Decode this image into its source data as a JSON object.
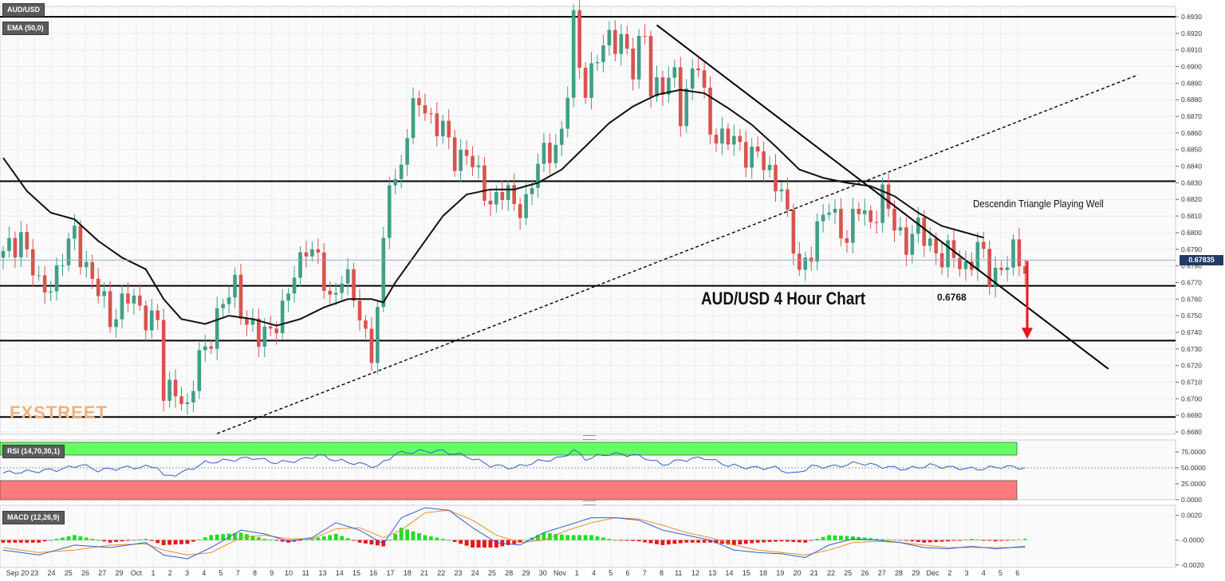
{
  "symbol": "AUD/USD",
  "indicators": {
    "ema": "EMA (50,0)",
    "rsi": "RSI (14,70,30,1)",
    "macd": "MACD (12,26,9)"
  },
  "watermark": {
    "part1": "FX",
    "part2": "STREET"
  },
  "annotations": {
    "chart_title": "AUD/USD 4 Hour Chart",
    "pattern": "Descendin Triangle  Playing Well",
    "level": "0.6768"
  },
  "current_price": "0.67835",
  "colors": {
    "bull": "#3f9f86",
    "bear": "#d9534f",
    "ema": "#111111",
    "arrow": "#e8161b",
    "rsi_line": "#2f5fd0",
    "macd_line": "#2f5fd0",
    "signal_line": "#f08c2b",
    "hist_pos": "#22dd22",
    "hist_neg": "#ee1111",
    "overbought": "#66ff66",
    "oversold": "#ff7b7b"
  },
  "chart_data": [
    {
      "type": "candlestick",
      "title": "AUD/USD 4 Hour Chart",
      "timeframe": "4H",
      "x_ticks": [
        "Sep 20",
        "23",
        "24",
        "25",
        "26",
        "27",
        "29",
        "Oct",
        "1",
        "2",
        "3",
        "4",
        "5",
        "7",
        "8",
        "9",
        "10",
        "11",
        "13",
        "14",
        "15",
        "16",
        "17",
        "18",
        "21",
        "22",
        "23",
        "24",
        "25",
        "28",
        "29",
        "30",
        "Nov",
        "1",
        "4",
        "5",
        "6",
        "7",
        "8",
        "11",
        "12",
        "13",
        "14",
        "15",
        "18",
        "19",
        "20",
        "21",
        "22",
        "25",
        "26",
        "27",
        "28",
        "29",
        "Dec",
        "2",
        "3",
        "4",
        "5",
        "6"
      ],
      "y_ticks": [
        "0.6930",
        "0.6920",
        "0.6910",
        "0.6900",
        "0.6890",
        "0.6880",
        "0.6870",
        "0.6860",
        "0.6850",
        "0.6840",
        "0.6830",
        "0.6820",
        "0.6810",
        "0.6800",
        "0.6790",
        "0.6780",
        "0.6770",
        "0.6760",
        "0.6750",
        "0.6740",
        "0.6730",
        "0.6720",
        "0.6710",
        "0.6700",
        "0.6690",
        "0.6680"
      ],
      "ylim": [
        0.6677,
        0.6934
      ],
      "close_path": [
        [
          0,
          0.6785
        ],
        [
          3,
          0.68
        ],
        [
          6,
          0.6765
        ],
        [
          9,
          0.6775
        ],
        [
          12,
          0.68
        ],
        [
          15,
          0.677
        ],
        [
          18,
          0.675
        ],
        [
          21,
          0.676
        ],
        [
          24,
          0.6752
        ],
        [
          26,
          0.6745
        ],
        [
          27,
          0.67
        ],
        [
          29,
          0.671
        ],
        [
          31,
          0.669
        ],
        [
          33,
          0.6725
        ],
        [
          35,
          0.674
        ],
        [
          37,
          0.6755
        ],
        [
          39,
          0.677
        ],
        [
          41,
          0.6745
        ],
        [
          43,
          0.6735
        ],
        [
          45,
          0.6745
        ],
        [
          47,
          0.675
        ],
        [
          49,
          0.6775
        ],
        [
          51,
          0.6795
        ],
        [
          53,
          0.678
        ],
        [
          55,
          0.676
        ],
        [
          57,
          0.6775
        ],
        [
          59,
          0.676
        ],
        [
          61,
          0.674
        ],
        [
          62,
          0.673
        ],
        [
          63,
          0.675
        ],
        [
          64,
          0.679
        ],
        [
          65,
          0.6835
        ],
        [
          66,
          0.683
        ],
        [
          68,
          0.686
        ],
        [
          70,
          0.688
        ],
        [
          72,
          0.687
        ],
        [
          74,
          0.686
        ],
        [
          76,
          0.6845
        ],
        [
          78,
          0.685
        ],
        [
          80,
          0.683
        ],
        [
          82,
          0.682
        ],
        [
          84,
          0.6825
        ],
        [
          86,
          0.6815
        ],
        [
          88,
          0.682
        ],
        [
          90,
          0.684
        ],
        [
          92,
          0.685
        ],
        [
          94,
          0.686
        ],
        [
          95,
          0.6885
        ],
        [
          96,
          0.6925
        ],
        [
          97,
          0.69
        ],
        [
          98,
          0.689
        ],
        [
          100,
          0.6905
        ],
        [
          102,
          0.6915
        ],
        [
          104,
          0.692
        ],
        [
          106,
          0.6895
        ],
        [
          107,
          0.691
        ],
        [
          108,
          0.6922
        ],
        [
          109,
          0.689
        ],
        [
          111,
          0.6885
        ],
        [
          113,
          0.6895
        ],
        [
          114,
          0.6875
        ],
        [
          116,
          0.6895
        ],
        [
          117,
          0.69
        ],
        [
          118,
          0.688
        ],
        [
          119,
          0.6865
        ],
        [
          121,
          0.6855
        ],
        [
          123,
          0.6855
        ],
        [
          125,
          0.685
        ],
        [
          127,
          0.6845
        ],
        [
          129,
          0.6835
        ],
        [
          131,
          0.683
        ],
        [
          132,
          0.6805
        ],
        [
          133,
          0.679
        ],
        [
          134,
          0.6775
        ],
        [
          135,
          0.6785
        ],
        [
          137,
          0.68
        ],
        [
          139,
          0.6815
        ],
        [
          141,
          0.6805
        ],
        [
          142,
          0.6795
        ],
        [
          144,
          0.6815
        ],
        [
          146,
          0.6808
        ],
        [
          148,
          0.682
        ],
        [
          150,
          0.6805
        ],
        [
          152,
          0.6795
        ],
        [
          154,
          0.68
        ],
        [
          156,
          0.6795
        ],
        [
          158,
          0.6785
        ],
        [
          160,
          0.6785
        ],
        [
          162,
          0.678
        ],
        [
          163,
          0.6785
        ],
        [
          164,
          0.679
        ],
        [
          166,
          0.6775
        ],
        [
          168,
          0.678
        ],
        [
          170,
          0.6785
        ],
        [
          172,
          0.678
        ]
      ],
      "ema_50": [
        [
          0,
          0.6845
        ],
        [
          4,
          0.6825
        ],
        [
          8,
          0.6812
        ],
        [
          12,
          0.6808
        ],
        [
          16,
          0.6795
        ],
        [
          20,
          0.6785
        ],
        [
          24,
          0.6778
        ],
        [
          27,
          0.676
        ],
        [
          30,
          0.6748
        ],
        [
          34,
          0.6745
        ],
        [
          38,
          0.675
        ],
        [
          42,
          0.6748
        ],
        [
          46,
          0.6744
        ],
        [
          50,
          0.6748
        ],
        [
          54,
          0.6755
        ],
        [
          58,
          0.676
        ],
        [
          62,
          0.676
        ],
        [
          64,
          0.6758
        ],
        [
          66,
          0.677
        ],
        [
          70,
          0.679
        ],
        [
          74,
          0.681
        ],
        [
          78,
          0.6823
        ],
        [
          82,
          0.6826
        ],
        [
          86,
          0.6826
        ],
        [
          90,
          0.683
        ],
        [
          94,
          0.6838
        ],
        [
          98,
          0.6852
        ],
        [
          102,
          0.6866
        ],
        [
          106,
          0.6876
        ],
        [
          110,
          0.6883
        ],
        [
          114,
          0.6886
        ],
        [
          118,
          0.6884
        ],
        [
          122,
          0.6875
        ],
        [
          126,
          0.6865
        ],
        [
          130,
          0.6852
        ],
        [
          134,
          0.6838
        ],
        [
          138,
          0.6833
        ],
        [
          142,
          0.683
        ],
        [
          146,
          0.6828
        ],
        [
          150,
          0.6822
        ],
        [
          154,
          0.6812
        ],
        [
          158,
          0.6804
        ],
        [
          162,
          0.68
        ],
        [
          165,
          0.6797
        ]
      ],
      "horizontal_levels": [
        0.693,
        0.6831,
        0.6768,
        0.6735,
        0.6689
      ],
      "trendlines": [
        {
          "name": "descending resistance",
          "points": [
            [
              110,
              0.6925
            ],
            [
              186,
              0.6718
            ]
          ]
        },
        {
          "name": "rising support (dashed)",
          "points": [
            [
              36,
              0.6679
            ],
            [
              191,
              0.6895
            ]
          ]
        }
      ],
      "projection_arrow": {
        "from": 0.6783,
        "to": 0.6736
      }
    },
    {
      "type": "line",
      "title": "RSI (14,70,30,1)",
      "y_ticks": [
        "75.0000",
        "50.0000",
        "25.0000",
        "0.0000"
      ],
      "ylim": [
        0,
        90
      ],
      "overbought": 70,
      "oversold": 30,
      "values": [
        [
          0,
          42
        ],
        [
          6,
          45
        ],
        [
          10,
          48
        ],
        [
          13,
          55
        ],
        [
          16,
          46
        ],
        [
          20,
          50
        ],
        [
          26,
          52
        ],
        [
          27,
          36
        ],
        [
          30,
          42
        ],
        [
          34,
          58
        ],
        [
          38,
          62
        ],
        [
          42,
          66
        ],
        [
          46,
          58
        ],
        [
          50,
          62
        ],
        [
          53,
          70
        ],
        [
          56,
          62
        ],
        [
          60,
          56
        ],
        [
          63,
          52
        ],
        [
          66,
          72
        ],
        [
          70,
          76
        ],
        [
          74,
          76
        ],
        [
          78,
          68
        ],
        [
          82,
          54
        ],
        [
          86,
          50
        ],
        [
          90,
          60
        ],
        [
          94,
          66
        ],
        [
          96,
          78
        ],
        [
          98,
          64
        ],
        [
          102,
          72
        ],
        [
          106,
          70
        ],
        [
          108,
          66
        ],
        [
          111,
          55
        ],
        [
          114,
          62
        ],
        [
          118,
          66
        ],
        [
          122,
          54
        ],
        [
          126,
          50
        ],
        [
          130,
          50
        ],
        [
          133,
          40
        ],
        [
          136,
          52
        ],
        [
          140,
          52
        ],
        [
          144,
          58
        ],
        [
          148,
          52
        ],
        [
          152,
          48
        ],
        [
          156,
          54
        ],
        [
          160,
          50
        ],
        [
          164,
          48
        ],
        [
          168,
          52
        ],
        [
          172,
          50
        ]
      ]
    },
    {
      "type": "bar+line",
      "title": "MACD (12,26,9)",
      "y_ticks": [
        "0.0020",
        "-0.0000",
        "-0.0020"
      ],
      "ylim": [
        -0.0022,
        0.0028
      ],
      "macd": [
        [
          0,
          -0.0008
        ],
        [
          6,
          -0.0012
        ],
        [
          12,
          -0.0004
        ],
        [
          18,
          -0.0006
        ],
        [
          24,
          -0.0002
        ],
        [
          27,
          -0.0012
        ],
        [
          31,
          -0.0015
        ],
        [
          35,
          -0.0006
        ],
        [
          40,
          0.0008
        ],
        [
          44,
          0.0005
        ],
        [
          48,
          -0.0001
        ],
        [
          52,
          0.0002
        ],
        [
          56,
          0.0014
        ],
        [
          60,
          0.0008
        ],
        [
          64,
          -0.0003
        ],
        [
          67,
          0.0018
        ],
        [
          71,
          0.0026
        ],
        [
          75,
          0.0024
        ],
        [
          79,
          0.001
        ],
        [
          83,
          -0.0002
        ],
        [
          87,
          -0.0004
        ],
        [
          91,
          0.0006
        ],
        [
          95,
          0.0012
        ],
        [
          99,
          0.0018
        ],
        [
          103,
          0.0018
        ],
        [
          107,
          0.0016
        ],
        [
          111,
          0.0008
        ],
        [
          115,
          0.0004
        ],
        [
          119,
          0.0
        ],
        [
          123,
          -0.0008
        ],
        [
          127,
          -0.001
        ],
        [
          131,
          -0.0011
        ],
        [
          135,
          -0.0014
        ],
        [
          139,
          -0.0004
        ],
        [
          143,
          0.0001
        ],
        [
          147,
          0.0
        ],
        [
          151,
          -0.0002
        ],
        [
          155,
          -0.0006
        ],
        [
          159,
          -0.0007
        ],
        [
          163,
          -0.0005
        ],
        [
          167,
          -0.0007
        ],
        [
          172,
          -0.0005
        ]
      ],
      "signal": [
        [
          0,
          -0.0006
        ],
        [
          6,
          -0.001
        ],
        [
          12,
          -0.0008
        ],
        [
          18,
          -0.0004
        ],
        [
          24,
          -0.0003
        ],
        [
          27,
          -0.0008
        ],
        [
          31,
          -0.0012
        ],
        [
          35,
          -0.001
        ],
        [
          40,
          0.0002
        ],
        [
          44,
          0.0004
        ],
        [
          48,
          0.0001
        ],
        [
          52,
          0.0001
        ],
        [
          56,
          0.0009
        ],
        [
          60,
          0.001
        ],
        [
          64,
          0.0002
        ],
        [
          67,
          0.0008
        ],
        [
          71,
          0.0022
        ],
        [
          75,
          0.0024
        ],
        [
          79,
          0.0016
        ],
        [
          83,
          0.0004
        ],
        [
          87,
          -0.0002
        ],
        [
          91,
          0.0
        ],
        [
          95,
          0.0008
        ],
        [
          99,
          0.0014
        ],
        [
          103,
          0.0018
        ],
        [
          107,
          0.0017
        ],
        [
          111,
          0.0012
        ],
        [
          115,
          0.0006
        ],
        [
          119,
          0.0002
        ],
        [
          123,
          -0.0004
        ],
        [
          127,
          -0.0008
        ],
        [
          131,
          -0.001
        ],
        [
          135,
          -0.0012
        ],
        [
          139,
          -0.0008
        ],
        [
          143,
          -0.0002
        ],
        [
          147,
          -0.0001
        ],
        [
          151,
          -0.0002
        ],
        [
          155,
          -0.0004
        ],
        [
          159,
          -0.0006
        ],
        [
          163,
          -0.0006
        ],
        [
          167,
          -0.0006
        ],
        [
          172,
          -0.0006
        ]
      ]
    }
  ]
}
